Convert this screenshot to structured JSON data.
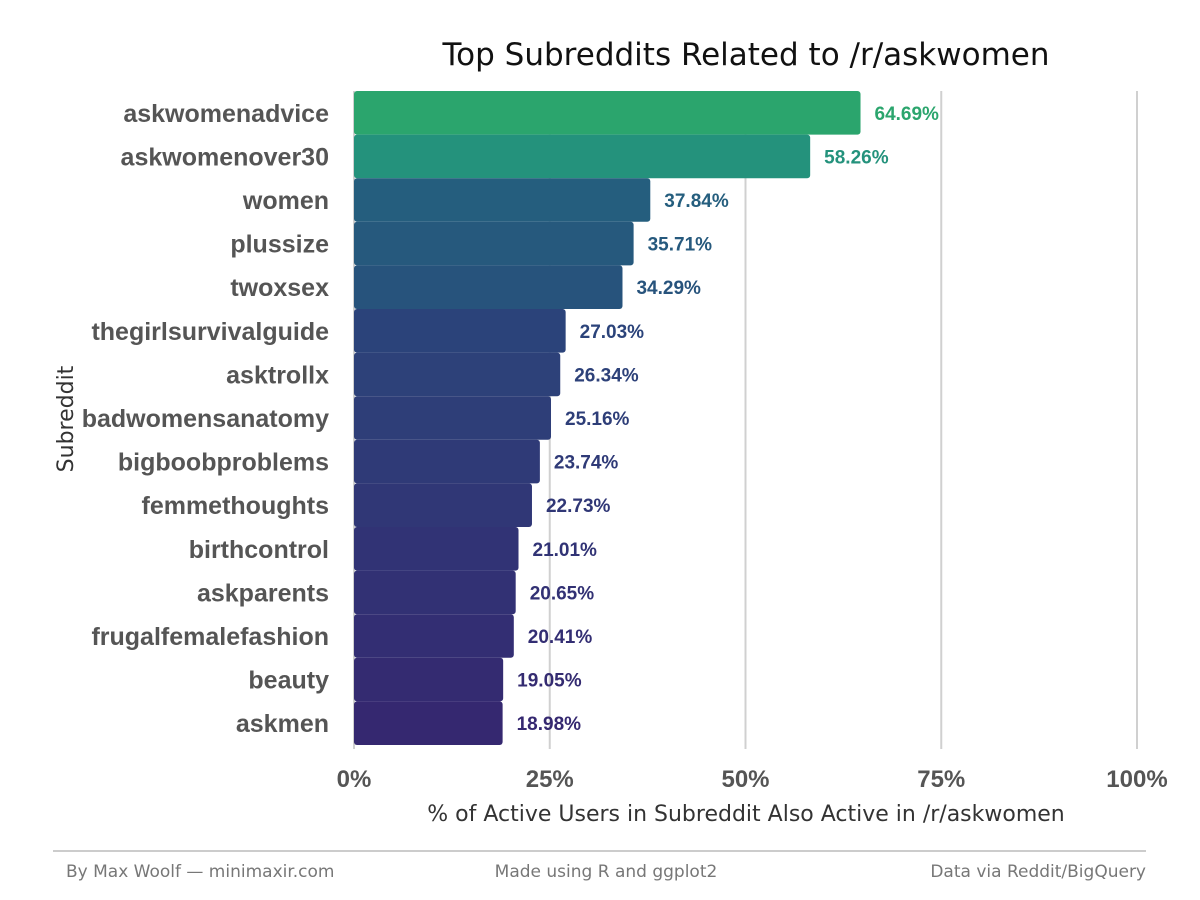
{
  "footer": {
    "left": "By Max Woolf — minimaxir.com",
    "center": "Made using R and ggplot2",
    "right": "Data via Reddit/BigQuery"
  },
  "chart_data": {
    "type": "bar",
    "orientation": "horizontal",
    "title": "Top Subreddits Related to /r/askwomen",
    "xlabel": "% of Active Users in Subreddit Also Active in /r/askwomen",
    "ylabel": "Subreddit",
    "xlim": [
      0,
      100
    ],
    "x_ticks": [
      "0%",
      "25%",
      "50%",
      "75%",
      "100%"
    ],
    "grid": "vertical major gridlines",
    "categories": [
      "askwomenadvice",
      "askwomenover30",
      "women",
      "plussize",
      "twoxsex",
      "thegirlsurvivalguide",
      "asktrollx",
      "badwomensanatomy",
      "bigboobproblems",
      "femmethoughts",
      "birthcontrol",
      "askparents",
      "frugalfemalefashion",
      "beauty",
      "askmen"
    ],
    "values": [
      64.69,
      58.26,
      37.84,
      35.71,
      34.29,
      27.03,
      26.34,
      25.16,
      23.74,
      22.73,
      21.01,
      20.65,
      20.41,
      19.05,
      18.98
    ],
    "value_labels": [
      "64.69%",
      "58.26%",
      "37.84%",
      "35.71%",
      "34.29%",
      "27.03%",
      "26.34%",
      "25.16%",
      "23.74%",
      "22.73%",
      "21.01%",
      "20.65%",
      "20.41%",
      "19.05%",
      "18.98%"
    ],
    "colors": [
      "#2ba56d",
      "#24927c",
      "#255e7e",
      "#26597d",
      "#27537c",
      "#2b437a",
      "#2d4179",
      "#2e3e78",
      "#2f3a77",
      "#303776",
      "#313375",
      "#323174",
      "#332e73",
      "#342b71",
      "#352870"
    ]
  }
}
